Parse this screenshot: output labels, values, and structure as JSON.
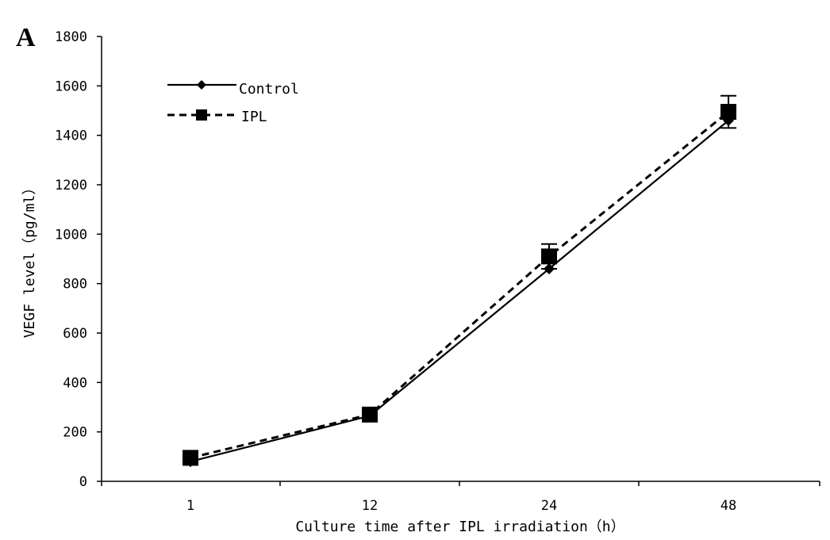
{
  "panel_label": "A",
  "chart_data": {
    "type": "line",
    "title": "",
    "xlabel": "Culture time after IPL irradiation（h）",
    "ylabel": "VEGF level（pg/ml）",
    "categories": [
      "1",
      "12",
      "24",
      "48"
    ],
    "ylim": [
      0,
      1800
    ],
    "yticks": [
      0,
      200,
      400,
      600,
      800,
      1000,
      1200,
      1400,
      1600,
      1800
    ],
    "grid": false,
    "legend_position": "top-left",
    "series": [
      {
        "name": "Control",
        "values": [
          80,
          265,
          860,
          1460
        ],
        "line_style": "solid",
        "marker": "diamond",
        "color": "#000000"
      },
      {
        "name": "IPL",
        "values": [
          95,
          270,
          910,
          1495
        ],
        "errors": [
          10,
          10,
          50,
          65
        ],
        "line_style": "dashed",
        "marker": "square",
        "color": "#000000"
      }
    ]
  }
}
